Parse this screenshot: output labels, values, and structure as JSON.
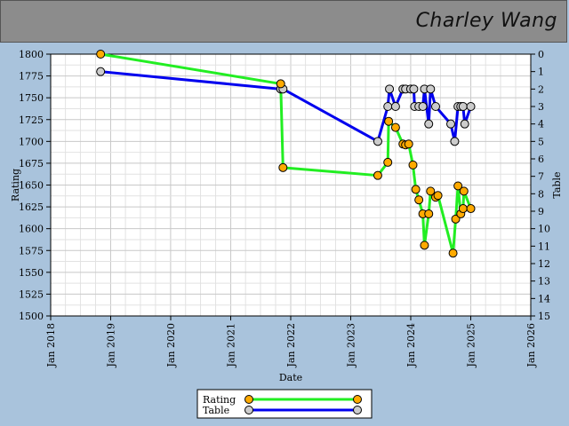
{
  "header": {
    "player_name": "Charley Wang"
  },
  "chart_data": {
    "type": "line",
    "xlabel": "Date",
    "ylabel_left": "Rating",
    "ylabel_right": "Table",
    "x_ticks": [
      "Jan 2018",
      "Jan 2019",
      "Jan 2020",
      "Jan 2021",
      "Jan 2022",
      "Jan 2023",
      "Jan 2024",
      "Jan 2025",
      "Jan 2026"
    ],
    "x_range": [
      "2018-01-01",
      "2026-01-01"
    ],
    "ylim_left": [
      1500,
      1800
    ],
    "y_ticks_left": [
      1500,
      1525,
      1550,
      1575,
      1600,
      1625,
      1650,
      1675,
      1700,
      1725,
      1750,
      1775,
      1800
    ],
    "ylim_right": [
      15,
      0
    ],
    "y_ticks_right": [
      15,
      14,
      13,
      12,
      11,
      10,
      9,
      8,
      7,
      6,
      5,
      4,
      3,
      2,
      1,
      0
    ],
    "grid": true,
    "legend_position": "bottom-center",
    "series": [
      {
        "name": "Rating",
        "axis": "left",
        "line_color": "#22ee22",
        "marker_color": "#ffaa00",
        "points": [
          [
            "2018-11-01",
            1800
          ],
          [
            "2021-11-01",
            1766
          ],
          [
            "2021-11-15",
            1670
          ],
          [
            "2023-06-15",
            1661
          ],
          [
            "2023-08-15",
            1676
          ],
          [
            "2023-08-20",
            1723
          ],
          [
            "2023-10-01",
            1716
          ],
          [
            "2023-11-15",
            1697
          ],
          [
            "2023-12-01",
            1696
          ],
          [
            "2023-12-20",
            1697
          ],
          [
            "2024-01-15",
            1673
          ],
          [
            "2024-02-01",
            1645
          ],
          [
            "2024-02-20",
            1633
          ],
          [
            "2024-03-15",
            1617
          ],
          [
            "2024-03-25",
            1581
          ],
          [
            "2024-04-20",
            1617
          ],
          [
            "2024-05-01",
            1643
          ],
          [
            "2024-06-01",
            1636
          ],
          [
            "2024-06-15",
            1638
          ],
          [
            "2024-09-15",
            1572
          ],
          [
            "2024-10-01",
            1611
          ],
          [
            "2024-10-15",
            1649
          ],
          [
            "2024-11-01",
            1617
          ],
          [
            "2024-11-15",
            1623
          ],
          [
            "2024-11-20",
            1643
          ],
          [
            "2025-01-01",
            1623
          ]
        ]
      },
      {
        "name": "Table",
        "axis": "right",
        "line_color": "#0000ee",
        "marker_color": "#cccccc",
        "points": [
          [
            "2018-11-01",
            1
          ],
          [
            "2021-11-01",
            2
          ],
          [
            "2021-11-15",
            2
          ],
          [
            "2023-06-15",
            5
          ],
          [
            "2023-08-15",
            3
          ],
          [
            "2023-08-25",
            2
          ],
          [
            "2023-10-01",
            3
          ],
          [
            "2023-11-15",
            2
          ],
          [
            "2023-12-01",
            2
          ],
          [
            "2024-01-01",
            2
          ],
          [
            "2024-01-20",
            2
          ],
          [
            "2024-01-25",
            3
          ],
          [
            "2024-02-20",
            3
          ],
          [
            "2024-03-15",
            3
          ],
          [
            "2024-03-25",
            2
          ],
          [
            "2024-04-20",
            4
          ],
          [
            "2024-05-01",
            2
          ],
          [
            "2024-06-01",
            3
          ],
          [
            "2024-09-01",
            4
          ],
          [
            "2024-09-25",
            5
          ],
          [
            "2024-10-15",
            3
          ],
          [
            "2024-11-01",
            3
          ],
          [
            "2024-11-15",
            3
          ],
          [
            "2024-11-25",
            4
          ],
          [
            "2025-01-01",
            3
          ]
        ]
      }
    ]
  }
}
